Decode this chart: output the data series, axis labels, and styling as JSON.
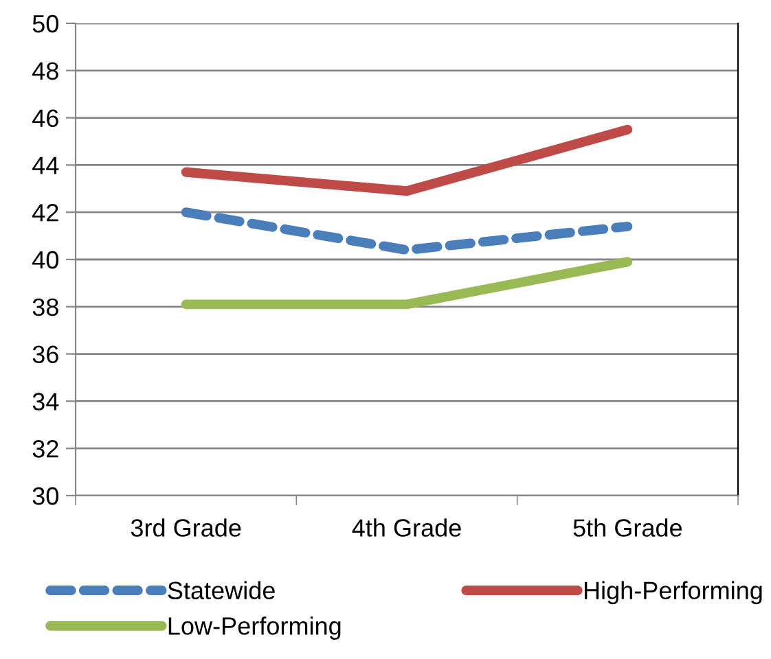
{
  "chart_data": {
    "type": "line",
    "categories": [
      "3rd Grade",
      "4th Grade",
      "5th Grade"
    ],
    "series": [
      {
        "name": "Statewide",
        "color": "#4a7ebb",
        "values": [
          42.0,
          40.4,
          41.4
        ],
        "line_style": "dashed"
      },
      {
        "name": "High-Performing",
        "color": "#be4b48",
        "values": [
          43.7,
          42.9,
          45.5
        ]
      },
      {
        "name": "Low-Performing",
        "color": "#98b954",
        "values": [
          38.1,
          38.1,
          39.9
        ]
      }
    ],
    "ylim": [
      30,
      50
    ],
    "yticks": [
      30,
      32,
      34,
      36,
      38,
      40,
      42,
      44,
      46,
      48,
      50
    ],
    "grid": "y",
    "legend": "bottom",
    "marker": "none"
  }
}
